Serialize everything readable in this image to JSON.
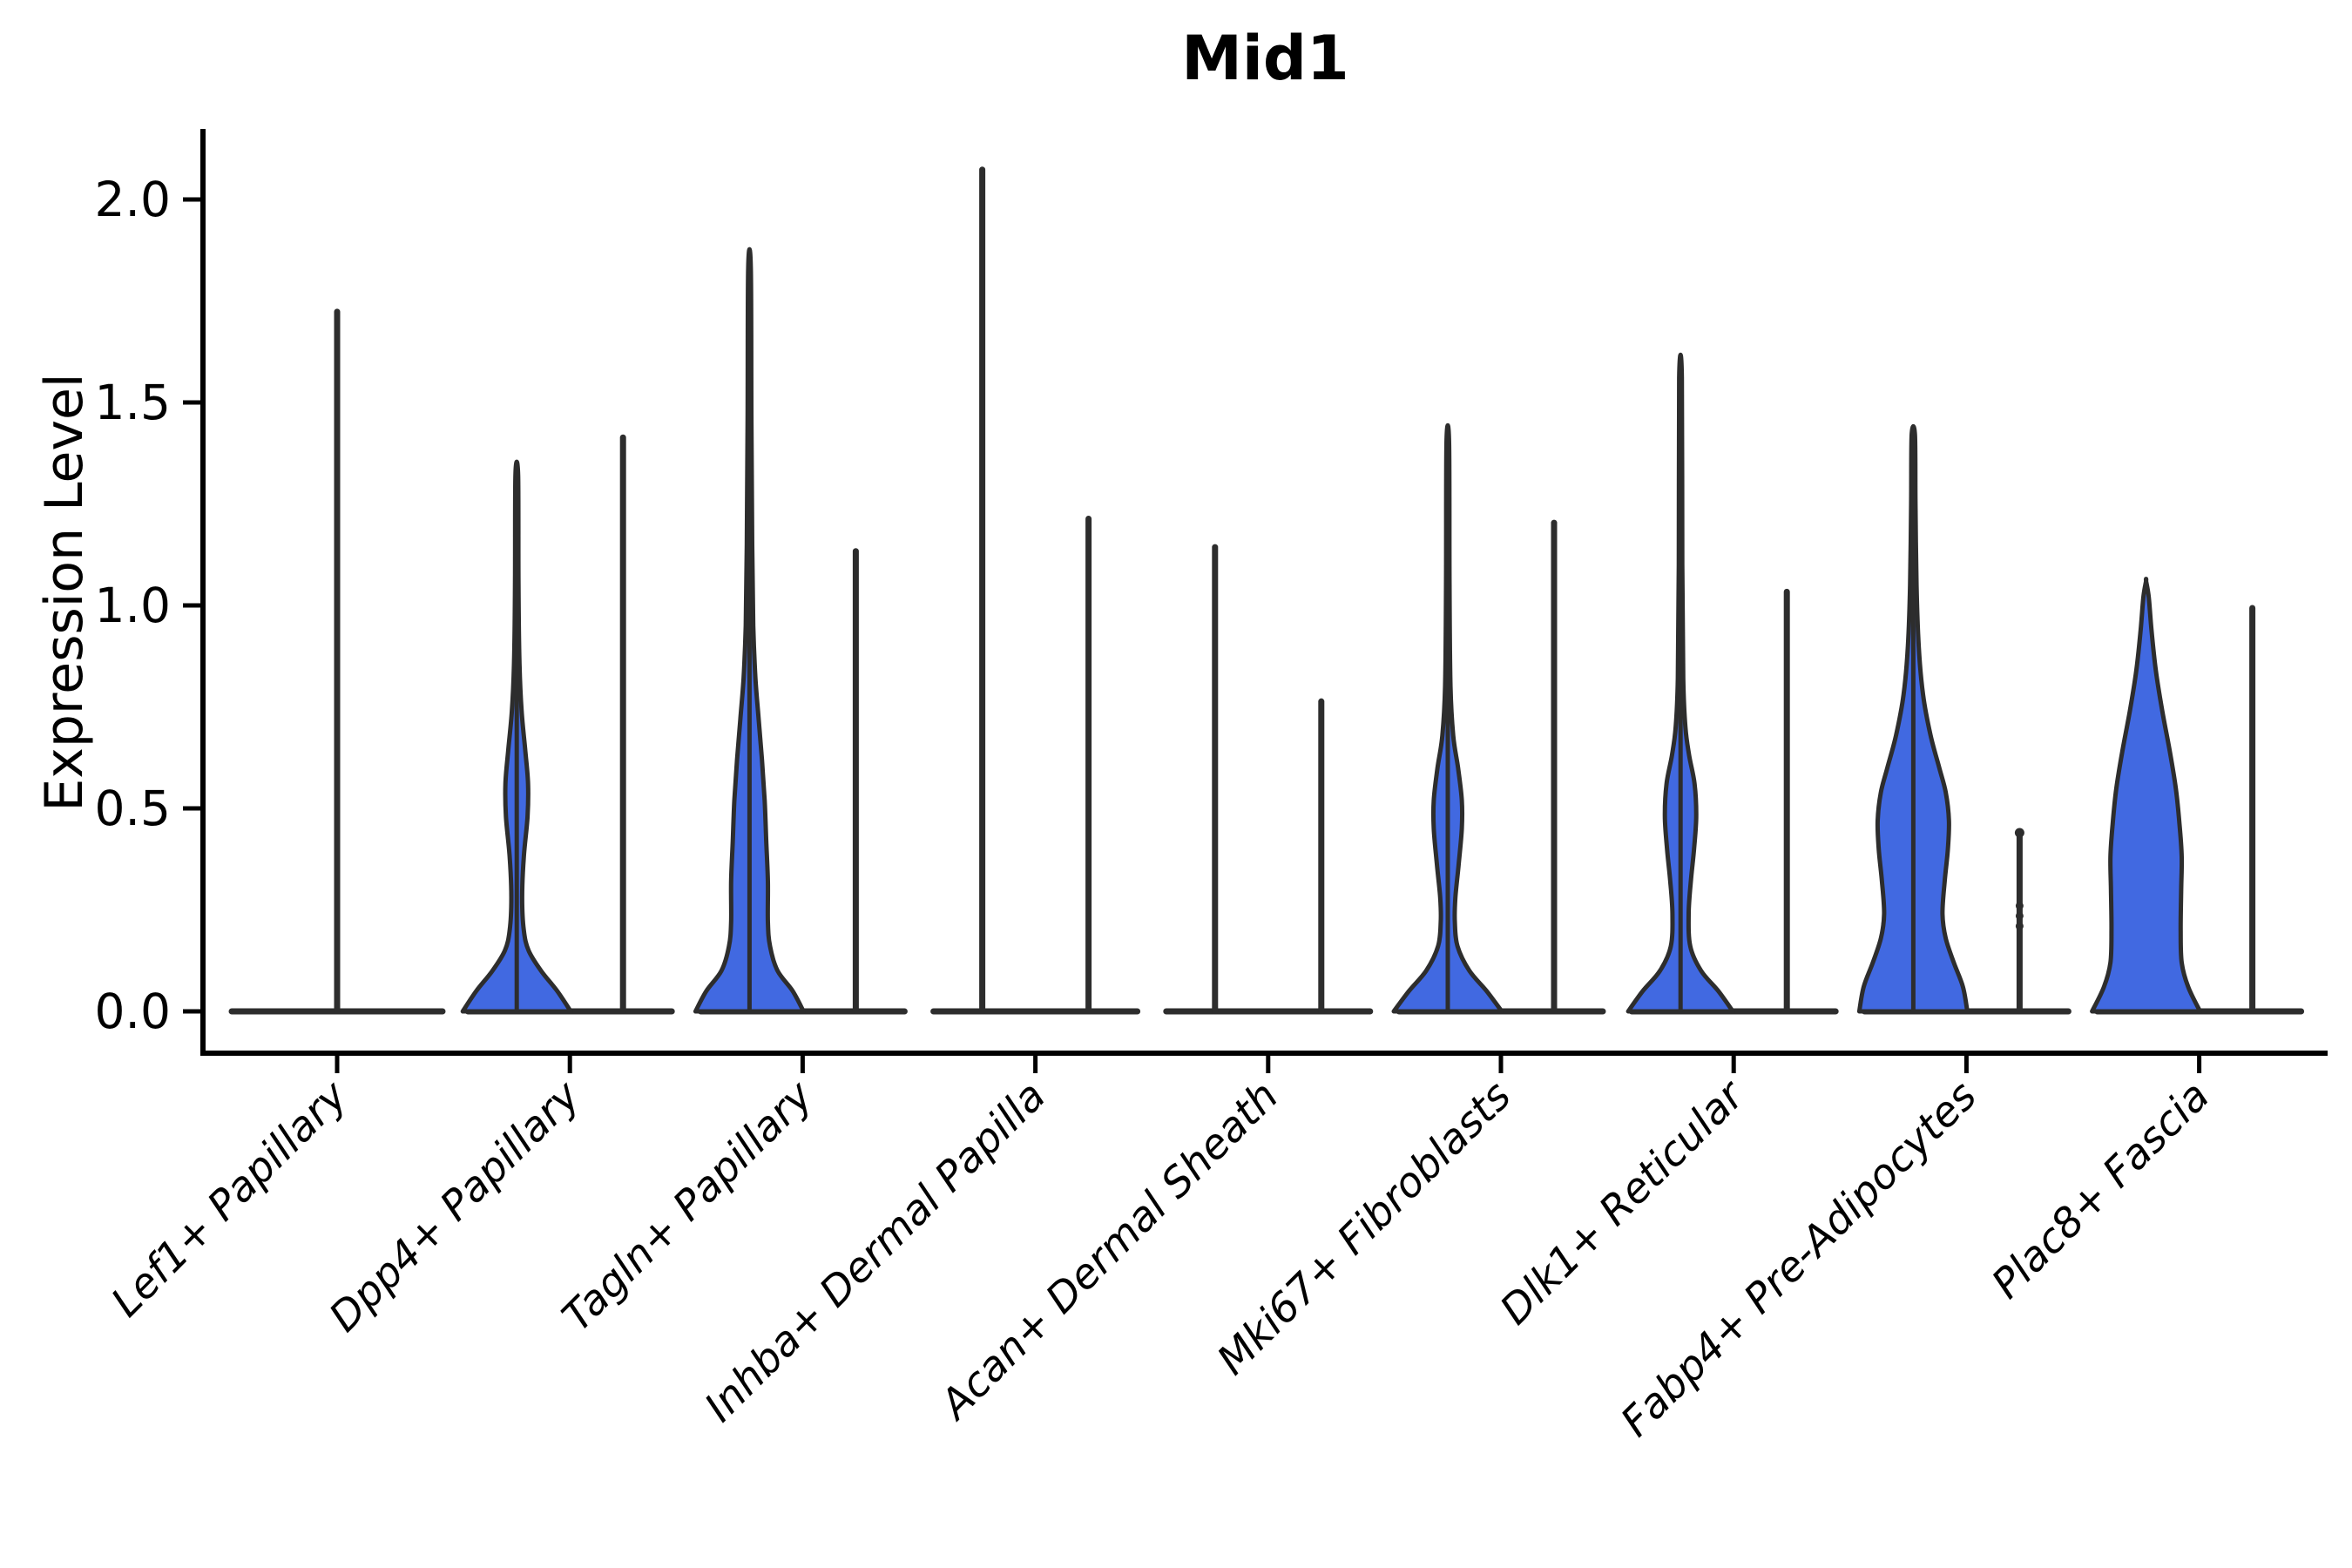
{
  "header": {
    "title": "Mid1"
  },
  "axes": {
    "y_label": "Expression Level",
    "y_tick_labels": [
      "0.0",
      "0.5",
      "1.0",
      "1.5",
      "2.0"
    ]
  },
  "colors": {
    "violin_fill": "#4169E1",
    "violin_outline": "#2d2d2d",
    "axis": "#000000"
  },
  "chart_data": {
    "type": "violin",
    "title": "Mid1",
    "xlabel": "",
    "ylabel": "Expression Level",
    "ylim": [
      -0.1,
      2.17
    ],
    "yticks": [
      0.0,
      0.5,
      1.0,
      1.5,
      2.0
    ],
    "grid": false,
    "legend": "none",
    "groups_per_category": 2,
    "categories": [
      {
        "label": "Lef1+ Papillary",
        "violins": [
          {
            "group": "single",
            "style": "line",
            "max": 1.73,
            "full_width": true
          }
        ]
      },
      {
        "label": "Dpp4+ Papillary",
        "violins": [
          {
            "group": "left",
            "style": "body",
            "max": 1.32,
            "profile": [
              [
                0,
                1.0
              ],
              [
                0.05,
                0.75
              ],
              [
                0.1,
                0.45
              ],
              [
                0.15,
                0.22
              ],
              [
                0.2,
                0.13
              ],
              [
                0.28,
                0.1
              ],
              [
                0.38,
                0.13
              ],
              [
                0.48,
                0.2
              ],
              [
                0.56,
                0.21
              ],
              [
                0.64,
                0.16
              ],
              [
                0.74,
                0.09
              ],
              [
                0.86,
                0.05
              ],
              [
                1.05,
                0.032
              ],
              [
                1.32,
                0.025
              ]
            ]
          },
          {
            "group": "right",
            "style": "line",
            "max": 1.42
          }
        ]
      },
      {
        "label": "Tagln+ Papillary",
        "violins": [
          {
            "group": "left",
            "style": "body",
            "max": 1.83,
            "profile": [
              [
                0,
                1.0
              ],
              [
                0.05,
                0.8
              ],
              [
                0.1,
                0.52
              ],
              [
                0.16,
                0.38
              ],
              [
                0.22,
                0.34
              ],
              [
                0.32,
                0.34
              ],
              [
                0.42,
                0.31
              ],
              [
                0.52,
                0.28
              ],
              [
                0.62,
                0.23
              ],
              [
                0.72,
                0.17
              ],
              [
                0.82,
                0.11
              ],
              [
                0.95,
                0.07
              ],
              [
                1.15,
                0.05
              ],
              [
                1.45,
                0.035
              ],
              [
                1.83,
                0.025
              ]
            ]
          },
          {
            "group": "right",
            "style": "line",
            "max": 1.14
          }
        ]
      },
      {
        "label": "Inhba+ Dermal Papilla",
        "violins": [
          {
            "group": "left",
            "style": "line",
            "max": 2.08
          },
          {
            "group": "right",
            "style": "line",
            "max": 1.22
          }
        ]
      },
      {
        "label": "Acan+ Dermal Sheath",
        "violins": [
          {
            "group": "left",
            "style": "line",
            "max": 1.15
          },
          {
            "group": "right",
            "style": "line",
            "max": 0.77
          }
        ]
      },
      {
        "label": "Mki67+ Fibroblasts",
        "violins": [
          {
            "group": "left",
            "style": "body",
            "max": 1.4,
            "profile": [
              [
                0,
                1.0
              ],
              [
                0.05,
                0.72
              ],
              [
                0.1,
                0.4
              ],
              [
                0.16,
                0.18
              ],
              [
                0.22,
                0.13
              ],
              [
                0.28,
                0.14
              ],
              [
                0.36,
                0.2
              ],
              [
                0.45,
                0.26
              ],
              [
                0.52,
                0.26
              ],
              [
                0.6,
                0.19
              ],
              [
                0.68,
                0.1
              ],
              [
                0.8,
                0.05
              ],
              [
                1.05,
                0.032
              ],
              [
                1.4,
                0.025
              ]
            ]
          },
          {
            "group": "right",
            "style": "line",
            "max": 1.21
          }
        ]
      },
      {
        "label": "Dlk1+ Reticular",
        "violins": [
          {
            "group": "left",
            "style": "body",
            "max": 1.56,
            "profile": [
              [
                0,
                0.97
              ],
              [
                0.05,
                0.7
              ],
              [
                0.1,
                0.38
              ],
              [
                0.16,
                0.18
              ],
              [
                0.24,
                0.15
              ],
              [
                0.32,
                0.19
              ],
              [
                0.4,
                0.25
              ],
              [
                0.48,
                0.29
              ],
              [
                0.56,
                0.26
              ],
              [
                0.63,
                0.16
              ],
              [
                0.7,
                0.09
              ],
              [
                0.82,
                0.05
              ],
              [
                1.1,
                0.032
              ],
              [
                1.56,
                0.025
              ]
            ]
          },
          {
            "group": "right",
            "style": "line",
            "max": 1.04
          }
        ]
      },
      {
        "label": "Fabp4+ Pre-Adipocytes",
        "violins": [
          {
            "group": "left",
            "style": "body",
            "max": 1.42,
            "profile": [
              [
                0,
                1.0
              ],
              [
                0.06,
                0.92
              ],
              [
                0.12,
                0.75
              ],
              [
                0.18,
                0.6
              ],
              [
                0.24,
                0.54
              ],
              [
                0.32,
                0.58
              ],
              [
                0.4,
                0.64
              ],
              [
                0.47,
                0.66
              ],
              [
                0.54,
                0.6
              ],
              [
                0.6,
                0.48
              ],
              [
                0.68,
                0.32
              ],
              [
                0.78,
                0.18
              ],
              [
                0.9,
                0.1
              ],
              [
                1.05,
                0.06
              ],
              [
                1.25,
                0.04
              ],
              [
                1.42,
                0.03
              ]
            ]
          },
          {
            "group": "right",
            "style": "line",
            "max": 0.44,
            "dots": [
              0.21,
              0.235,
              0.26
            ],
            "top_dot": true
          }
        ]
      },
      {
        "label": "Plac8+ Fascia",
        "violins": [
          {
            "group": "left",
            "style": "body",
            "max": 1.06,
            "blunt_top": true,
            "profile": [
              [
                0,
                1.0
              ],
              [
                0.06,
                0.78
              ],
              [
                0.12,
                0.66
              ],
              [
                0.2,
                0.64
              ],
              [
                0.3,
                0.65
              ],
              [
                0.38,
                0.66
              ],
              [
                0.46,
                0.62
              ],
              [
                0.55,
                0.55
              ],
              [
                0.64,
                0.44
              ],
              [
                0.74,
                0.3
              ],
              [
                0.84,
                0.18
              ],
              [
                0.94,
                0.1
              ],
              [
                1.02,
                0.05
              ],
              [
                1.06,
                0.0
              ]
            ]
          },
          {
            "group": "right",
            "style": "line",
            "max": 1.0
          }
        ]
      }
    ]
  }
}
